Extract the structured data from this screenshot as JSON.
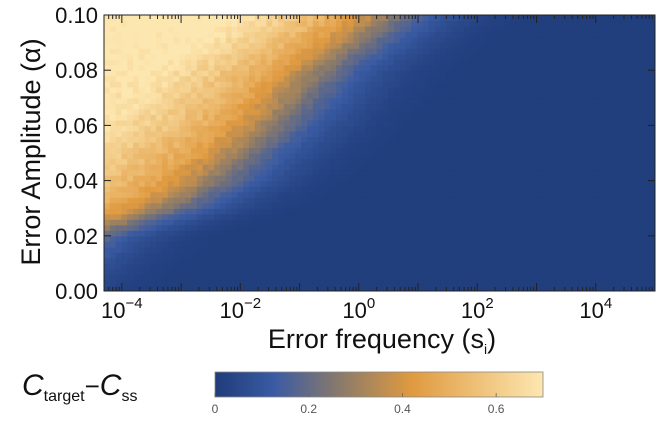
{
  "chart_data": {
    "type": "heatmap",
    "xlabel_main": "Error frequency (s",
    "xlabel_sub": "i",
    "xlabel_close": ")",
    "ylabel": "Error Amplitude (α)",
    "x_scale": "log10",
    "xlim": [
      5e-05,
      100000
    ],
    "ylim": [
      0.0,
      0.1
    ],
    "x_ticks": [
      {
        "value": 0.0001,
        "base": "10",
        "exp": "−4"
      },
      {
        "value": 0.01,
        "base": "10",
        "exp": "−2"
      },
      {
        "value": 1,
        "base": "10",
        "exp": "0"
      },
      {
        "value": 100,
        "base": "10",
        "exp": "2"
      },
      {
        "value": 10000,
        "base": "10",
        "exp": "4"
      }
    ],
    "y_ticks": [
      "0.00",
      "0.02",
      "0.04",
      "0.06",
      "0.08",
      "0.10"
    ],
    "y_tick_values": [
      0.0,
      0.02,
      0.04,
      0.06,
      0.08,
      0.1
    ],
    "colorbar": {
      "label_c1": "C",
      "label_sub1": "target",
      "label_minus": "−",
      "label_c2": "C",
      "label_sub2": "ss",
      "range": [
        0,
        0.7
      ],
      "ticks": [
        "0",
        "0.2",
        "0.4",
        "0.6"
      ],
      "tick_values": [
        0,
        0.2,
        0.4,
        0.6
      ],
      "colors": [
        "#1f3c7a",
        "#3a5ba3",
        "#8a7a6a",
        "#e09a40",
        "#fde7b0"
      ]
    },
    "boundary_description": {
      "alpha": [
        0.02,
        0.03,
        0.04,
        0.06,
        0.08,
        0.1
      ],
      "log10_freq_at_half_level": [
        -4.4,
        -3.0,
        -2.2,
        -1.2,
        -0.4,
        0.8
      ]
    }
  }
}
